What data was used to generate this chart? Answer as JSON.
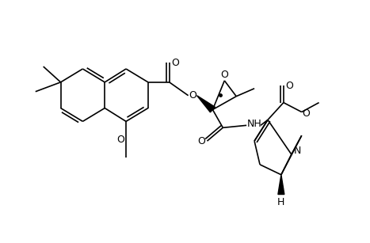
{
  "bg": "#ffffff",
  "lw": 1.2,
  "fs": 9,
  "figsize": [
    4.6,
    3.0
  ],
  "dpi": 100
}
